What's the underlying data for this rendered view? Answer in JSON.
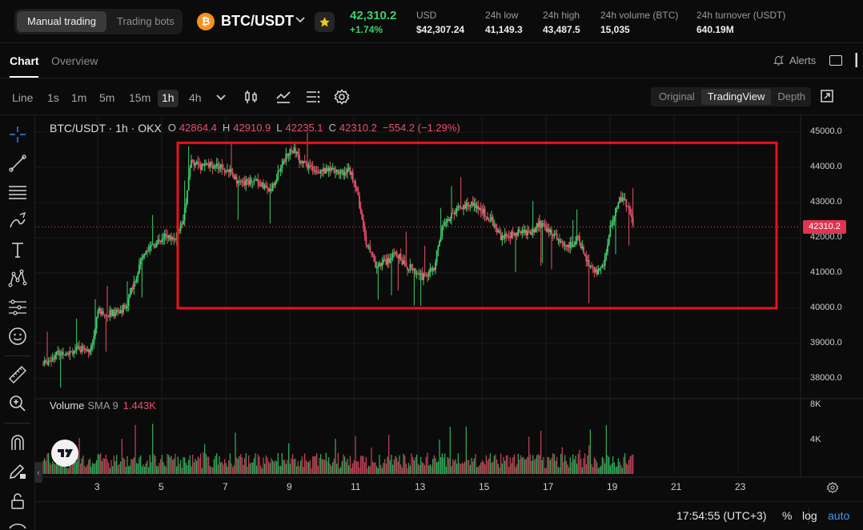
{
  "topbar": {
    "modes": [
      "Manual trading",
      "Trading bots"
    ],
    "coin_letter": "₿",
    "pair": "BTC/USDT",
    "price": "42,310.2",
    "change": "+1.74%",
    "stats": [
      {
        "label": "USD",
        "value": "$42,307.24"
      },
      {
        "label": "24h low",
        "value": "41,149.3"
      },
      {
        "label": "24h high",
        "value": "43,487.5"
      },
      {
        "label": "24h volume (BTC)",
        "value": "15,035"
      },
      {
        "label": "24h turnover (USDT)",
        "value": "640.19M"
      }
    ],
    "colors": {
      "up": "#3ccf6c",
      "down": "#e9506b",
      "star": "#f5c518"
    }
  },
  "tabs": {
    "chart": "Chart",
    "overview": "Overview",
    "alerts": "Alerts"
  },
  "toolbar": {
    "timeframes": [
      "Line",
      "1s",
      "1m",
      "5m",
      "15m",
      "1h",
      "4h"
    ],
    "active_timeframe": "1h",
    "views": [
      "Original",
      "TradingView",
      "Depth"
    ],
    "active_view": "TradingView"
  },
  "legend": {
    "symbol": "BTC/USDT · 1h · OKX",
    "o_label": "O",
    "o": "42864.4",
    "h_label": "H",
    "h": "42910.9",
    "l_label": "L",
    "l": "42235.1",
    "c_label": "C",
    "c": "42310.2",
    "delta": "−554.2 (−1.29%)"
  },
  "volume": {
    "label": "Volume",
    "sma": "SMA 9",
    "value": "1.443K",
    "axis": [
      "8K",
      "4K"
    ]
  },
  "axes": {
    "price_ticks": [
      "45000.0",
      "44000.0",
      "43000.0",
      "42000.0",
      "41000.0",
      "40000.0",
      "39000.0",
      "38000.0"
    ],
    "current_price": "42310.2",
    "date_ticks": [
      "3",
      "5",
      "7",
      "9",
      "11",
      "13",
      "15",
      "17",
      "19",
      "21",
      "23"
    ]
  },
  "annotation": {
    "type": "highlight-rectangle",
    "color": "#e8121b",
    "from_date": 5.5,
    "to_date": 24.2,
    "price_low": 40000,
    "price_high": 44700
  },
  "bottom": {
    "clock": "17:54:55 (UTC+3)",
    "percent": "%",
    "log": "log",
    "auto": "auto"
  },
  "chart_data": {
    "type": "candlestick",
    "title": "BTC/USDT · 1h · OKX",
    "x_unit": "day of month",
    "y_unit": "USDT",
    "ylim": [
      37700,
      45300
    ],
    "xlim": [
      1.25,
      24.8
    ],
    "series": [
      {
        "name": "price",
        "points": [
          [
            1.3,
            38400
          ],
          [
            1.7,
            38700
          ],
          [
            2.2,
            38800
          ],
          [
            2.8,
            38850
          ],
          [
            3.0,
            39900
          ],
          [
            3.5,
            39850
          ],
          [
            3.9,
            40050
          ],
          [
            4.2,
            40900
          ],
          [
            4.5,
            41700
          ],
          [
            4.8,
            41800
          ],
          [
            5.1,
            42100
          ],
          [
            5.4,
            41900
          ],
          [
            5.7,
            42600
          ],
          [
            5.9,
            44200
          ],
          [
            6.3,
            44000
          ],
          [
            6.7,
            44100
          ],
          [
            7.1,
            43900
          ],
          [
            7.5,
            43500
          ],
          [
            7.9,
            43700
          ],
          [
            8.4,
            43300
          ],
          [
            8.8,
            44200
          ],
          [
            9.1,
            44500
          ],
          [
            9.4,
            44100
          ],
          [
            9.8,
            43950
          ],
          [
            10.2,
            43900
          ],
          [
            10.6,
            43850
          ],
          [
            10.9,
            43900
          ],
          [
            11.1,
            43300
          ],
          [
            11.4,
            41800
          ],
          [
            11.7,
            41200
          ],
          [
            12.0,
            41300
          ],
          [
            12.3,
            41600
          ],
          [
            12.6,
            41200
          ],
          [
            12.9,
            41100
          ],
          [
            13.2,
            40850
          ],
          [
            13.5,
            41150
          ],
          [
            13.8,
            42400
          ],
          [
            14.1,
            42700
          ],
          [
            14.4,
            42900
          ],
          [
            14.7,
            43000
          ],
          [
            15.0,
            42800
          ],
          [
            15.3,
            42500
          ],
          [
            15.6,
            42000
          ],
          [
            15.9,
            42100
          ],
          [
            16.2,
            42200
          ],
          [
            16.5,
            42100
          ],
          [
            16.8,
            42400
          ],
          [
            17.1,
            42200
          ],
          [
            17.4,
            41950
          ],
          [
            17.7,
            41750
          ],
          [
            18.0,
            42000
          ],
          [
            18.3,
            41300
          ],
          [
            18.6,
            41000
          ],
          [
            18.8,
            41200
          ],
          [
            19.0,
            42300
          ],
          [
            19.3,
            43100
          ],
          [
            19.5,
            43000
          ],
          [
            19.75,
            42310
          ]
        ]
      }
    ]
  }
}
